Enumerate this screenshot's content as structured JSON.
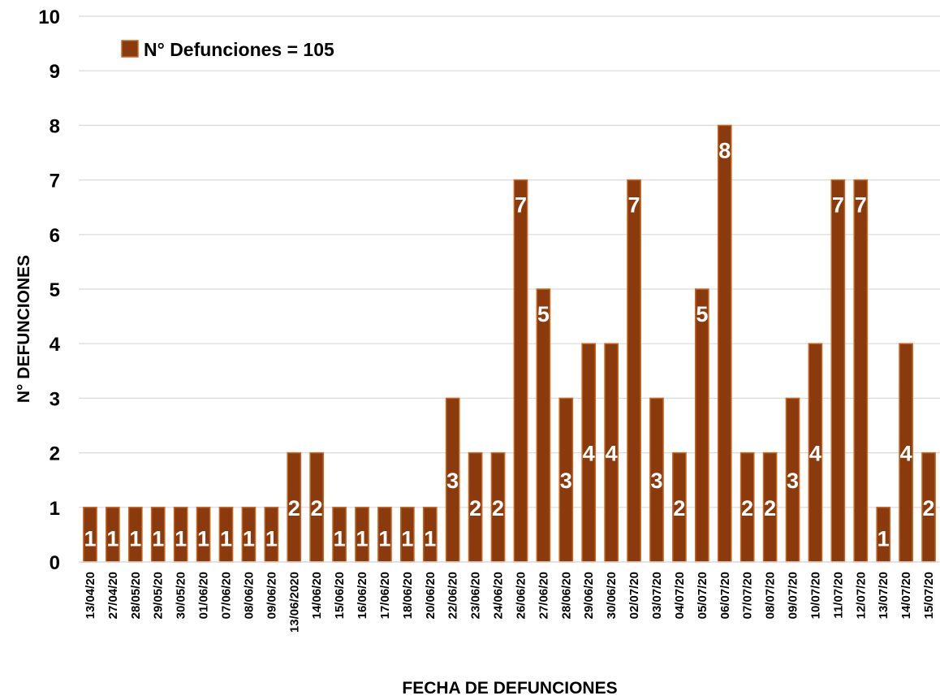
{
  "chart_data": {
    "type": "bar",
    "xlabel": "FECHA DE DEFUNCIONES",
    "ylabel": "N° DEFUNCIONES",
    "ylim": [
      0,
      10
    ],
    "yticks": [
      0,
      1,
      2,
      3,
      4,
      5,
      6,
      7,
      8,
      9,
      10
    ],
    "grid": true,
    "legend": {
      "position": "top-left",
      "label": "N° Defunciones = 105"
    },
    "colors": {
      "bar_fill": "#8B3A0E",
      "bar_edge": "#C9661F",
      "data_label": "#FFFFFF",
      "grid": "#D9D9D9"
    },
    "categories": [
      "13/04/20",
      "27/04/20",
      "28/05/20",
      "29/05/20",
      "30/05/20",
      "01/06/20",
      "07/06/20",
      "08/06/20",
      "09/06/20",
      "13/06/2020",
      "14/06/20",
      "15/06/20",
      "16/06/20",
      "17/06/20",
      "18/06/20",
      "20/06/20",
      "22/06/20",
      "23/06/20",
      "24/06/20",
      "26/06/20",
      "27/06/20",
      "28/06/20",
      "29/06/20",
      "30/06/20",
      "02/07/20",
      "03/07/20",
      "04/07/20",
      "05/07/20",
      "06/07/20",
      "07/07/20",
      "08/07/20",
      "09/07/20",
      "10/07/20",
      "11/07/20",
      "12/07/20",
      "13/07/20",
      "14/07/20",
      "15/07/20"
    ],
    "series": [
      {
        "name": "N° Defunciones = 105",
        "values": [
          1,
          1,
          1,
          1,
          1,
          1,
          1,
          1,
          1,
          2,
          2,
          1,
          1,
          1,
          1,
          1,
          3,
          2,
          2,
          7,
          5,
          3,
          4,
          4,
          7,
          3,
          2,
          5,
          8,
          2,
          2,
          3,
          4,
          7,
          7,
          1,
          4,
          2
        ]
      }
    ]
  }
}
